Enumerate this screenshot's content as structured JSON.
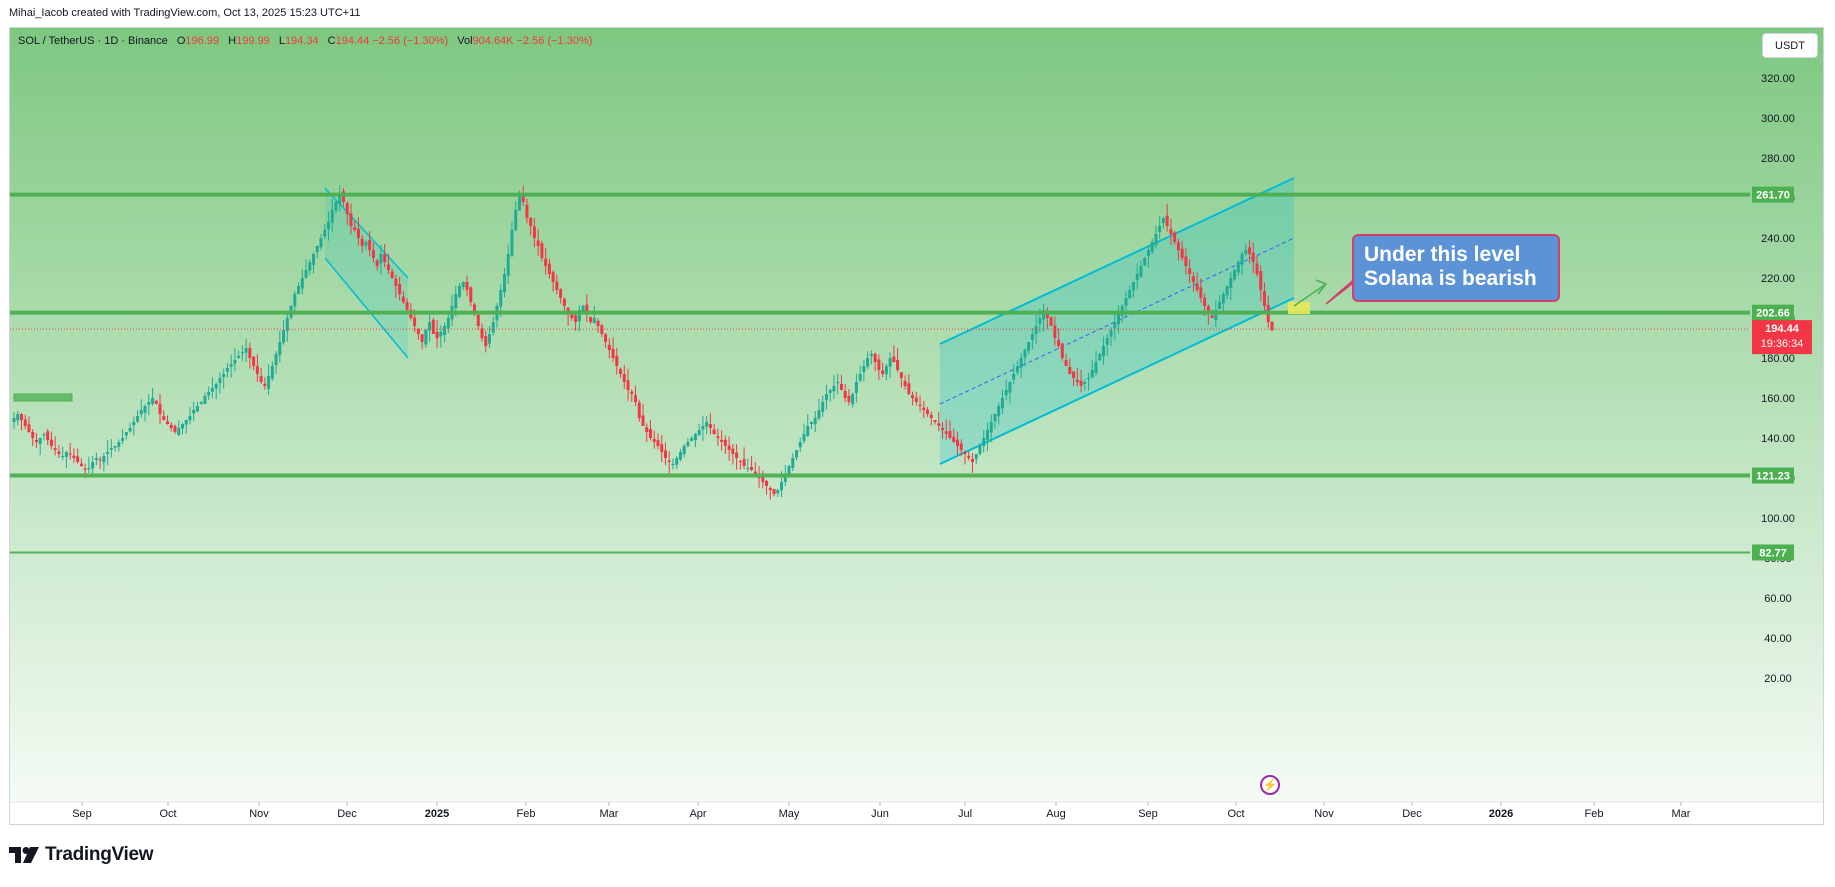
{
  "header": {
    "credit": "Mihai_Iacob created with TradingView.com, Oct 13, 2025 15:23 UTC+11"
  },
  "legend": {
    "symbol": "SOL / TetherUS · 1D · Binance",
    "open_label": "O",
    "open": "196.99",
    "high_label": "H",
    "high": "199.99",
    "low_label": "L",
    "low": "194.34",
    "close_label": "C",
    "close": "194.44",
    "change": "−2.56 (−1.30%)",
    "vol_label": "Vol",
    "vol": "904.64K",
    "vol_change": "−2.56 (−1.30%)"
  },
  "currency_button": "USDT",
  "callout": {
    "line1": "Under this level",
    "line2": "Solana is bearish"
  },
  "footer": {
    "brand": "TradingView"
  },
  "colors": {
    "background_top": "#7ec881",
    "background_bottom": "#f5fbf5",
    "level_line": "#4caf50",
    "channel": "#00bcd4",
    "up_candle": "#22ab94",
    "down_candle": "#f23645",
    "callout_fill": "#5b93d6",
    "callout_border": "#d23f6e"
  },
  "chart_data": {
    "type": "candlestick",
    "y_axis_ticks": [
      "320.00",
      "300.00",
      "280.00",
      "260.00",
      "240.00",
      "220.00",
      "200.00",
      "180.00",
      "160.00",
      "140.00",
      "120.00",
      "100.00",
      "80.00",
      "60.00",
      "40.00",
      "20.00"
    ],
    "y_range": [
      15,
      335
    ],
    "x_axis_labels": [
      "Sep",
      "Oct",
      "Nov",
      "Dec",
      "2025",
      "Feb",
      "Mar",
      "Apr",
      "May",
      "Jun",
      "Jul",
      "Aug",
      "Sep",
      "Oct",
      "Nov",
      "Dec",
      "2026",
      "Feb",
      "Mar"
    ],
    "price_levels": [
      {
        "label": "261.70",
        "value": 261.7
      },
      {
        "label": "202.66",
        "value": 202.66
      },
      {
        "label": "121.23",
        "value": 121.23
      },
      {
        "label": "82.77",
        "value": 82.77
      }
    ],
    "last_price": {
      "label": "194.44",
      "countdown": "19:36:34",
      "value": 194.44
    },
    "ascending_channel": {
      "from": "Jun 2025",
      "to": "Oct 2025",
      "lower_start": 127,
      "lower_end": 210,
      "upper_start": 187,
      "upper_end": 270
    },
    "descending_channel": {
      "from": "Nov 2024",
      "to": "Dec 2024",
      "upper_start": 265,
      "upper_end": 220,
      "lower_start": 230,
      "lower_end": 180
    },
    "approx_closes": [
      150,
      152,
      149,
      146,
      143,
      140,
      138,
      140,
      142,
      139,
      136,
      134,
      132,
      131,
      133,
      132,
      130,
      128,
      126,
      124,
      125,
      128,
      130,
      129,
      131,
      133,
      135,
      136,
      138,
      140,
      143,
      145,
      148,
      151,
      154,
      156,
      158,
      160,
      157,
      152,
      149,
      147,
      145,
      143,
      145,
      147,
      149,
      151,
      154,
      156,
      158,
      161,
      163,
      165,
      167,
      170,
      172,
      175,
      177,
      179,
      181,
      183,
      185,
      180,
      176,
      172,
      168,
      166,
      171,
      176,
      182,
      188,
      194,
      200,
      206,
      212,
      216,
      220,
      224,
      228,
      232,
      236,
      240,
      244,
      248,
      254,
      258,
      262,
      258,
      252,
      246,
      244,
      240,
      236,
      238,
      234,
      230,
      226,
      232,
      228,
      224,
      220,
      216,
      212,
      208,
      204,
      200,
      196,
      192,
      188,
      194,
      198,
      192,
      190,
      193,
      196,
      200,
      206,
      212,
      216,
      218,
      214,
      208,
      202,
      196,
      190,
      186,
      192,
      198,
      206,
      214,
      222,
      232,
      244,
      254,
      262,
      258,
      250,
      246,
      240,
      236,
      230,
      226,
      222,
      218,
      214,
      210,
      206,
      202,
      200,
      198,
      204,
      206,
      202,
      198,
      200,
      196,
      192,
      188,
      184,
      180,
      176,
      172,
      168,
      164,
      162,
      158,
      150,
      146,
      143,
      140,
      138,
      136,
      133,
      130,
      128,
      127,
      130,
      133,
      136,
      138,
      140,
      142,
      144,
      146,
      148,
      145,
      142,
      140,
      138,
      136,
      134,
      132,
      130,
      128,
      126,
      125,
      124,
      122,
      120,
      118,
      116,
      114,
      112,
      114,
      118,
      122,
      126,
      130,
      134,
      138,
      142,
      146,
      148,
      150,
      154,
      158,
      162,
      164,
      166,
      168,
      164,
      160,
      158,
      162,
      168,
      172,
      176,
      180,
      182,
      178,
      174,
      172,
      176,
      180,
      178,
      174,
      170,
      166,
      162,
      160,
      158,
      156,
      154,
      152,
      150,
      148,
      146,
      144,
      142,
      140,
      138,
      136,
      134,
      132,
      130,
      128,
      132,
      136,
      140,
      144,
      148,
      152,
      156,
      160,
      164,
      168,
      172,
      176,
      180,
      184,
      188,
      192,
      196,
      200,
      204,
      200,
      196,
      190,
      186,
      180,
      176,
      172,
      170,
      168,
      166,
      168,
      170,
      174,
      178,
      182,
      186,
      190,
      194,
      198,
      202,
      206,
      210,
      214,
      218,
      222,
      226,
      230,
      234,
      238,
      242,
      246,
      250,
      246,
      242,
      238,
      234,
      230,
      226,
      222,
      218,
      214,
      210,
      206,
      202,
      200,
      204,
      208,
      212,
      216,
      220,
      224,
      228,
      232,
      234,
      232,
      228,
      222,
      214,
      206,
      198,
      194
    ]
  }
}
